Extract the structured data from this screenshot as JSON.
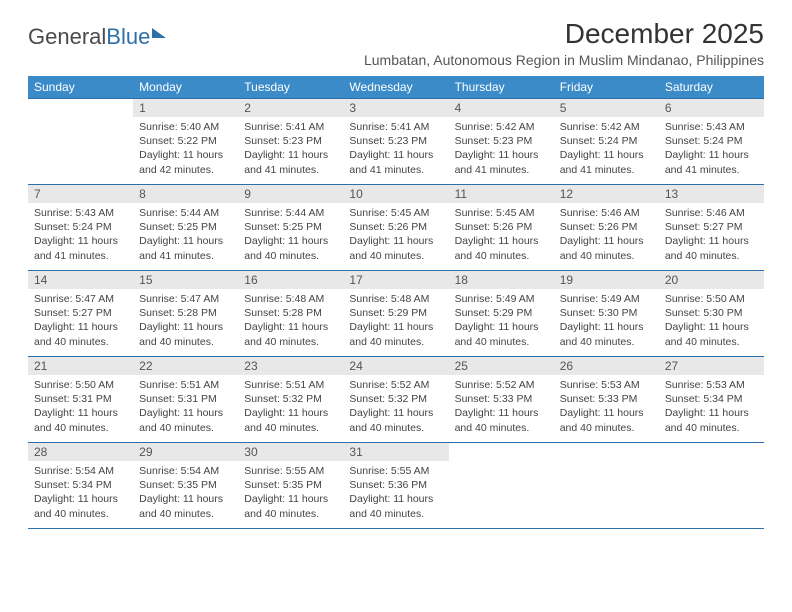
{
  "brand": {
    "part1": "General",
    "part2": "Blue"
  },
  "title": "December 2025",
  "location": "Lumbatan, Autonomous Region in Muslim Mindanao, Philippines",
  "colors": {
    "header_bg": "#3b8bc8",
    "header_text": "#ffffff",
    "rule": "#2f6fa7",
    "daynum_bg": "#e8e8e8",
    "body_text": "#444444",
    "page_bg": "#ffffff"
  },
  "typography": {
    "title_fontsize": 28,
    "location_fontsize": 14,
    "header_fontsize": 12,
    "daynum_fontsize": 12,
    "body_fontsize": 10.5
  },
  "layout": {
    "columns": 7,
    "rows": 5,
    "first_day_column": 1
  },
  "weekdays": [
    "Sunday",
    "Monday",
    "Tuesday",
    "Wednesday",
    "Thursday",
    "Friday",
    "Saturday"
  ],
  "labels": {
    "sunrise": "Sunrise:",
    "sunset": "Sunset:",
    "daylight": "Daylight:"
  },
  "days": [
    {
      "n": 1,
      "sunrise": "5:40 AM",
      "sunset": "5:22 PM",
      "daylight": "11 hours and 42 minutes."
    },
    {
      "n": 2,
      "sunrise": "5:41 AM",
      "sunset": "5:23 PM",
      "daylight": "11 hours and 41 minutes."
    },
    {
      "n": 3,
      "sunrise": "5:41 AM",
      "sunset": "5:23 PM",
      "daylight": "11 hours and 41 minutes."
    },
    {
      "n": 4,
      "sunrise": "5:42 AM",
      "sunset": "5:23 PM",
      "daylight": "11 hours and 41 minutes."
    },
    {
      "n": 5,
      "sunrise": "5:42 AM",
      "sunset": "5:24 PM",
      "daylight": "11 hours and 41 minutes."
    },
    {
      "n": 6,
      "sunrise": "5:43 AM",
      "sunset": "5:24 PM",
      "daylight": "11 hours and 41 minutes."
    },
    {
      "n": 7,
      "sunrise": "5:43 AM",
      "sunset": "5:24 PM",
      "daylight": "11 hours and 41 minutes."
    },
    {
      "n": 8,
      "sunrise": "5:44 AM",
      "sunset": "5:25 PM",
      "daylight": "11 hours and 41 minutes."
    },
    {
      "n": 9,
      "sunrise": "5:44 AM",
      "sunset": "5:25 PM",
      "daylight": "11 hours and 40 minutes."
    },
    {
      "n": 10,
      "sunrise": "5:45 AM",
      "sunset": "5:26 PM",
      "daylight": "11 hours and 40 minutes."
    },
    {
      "n": 11,
      "sunrise": "5:45 AM",
      "sunset": "5:26 PM",
      "daylight": "11 hours and 40 minutes."
    },
    {
      "n": 12,
      "sunrise": "5:46 AM",
      "sunset": "5:26 PM",
      "daylight": "11 hours and 40 minutes."
    },
    {
      "n": 13,
      "sunrise": "5:46 AM",
      "sunset": "5:27 PM",
      "daylight": "11 hours and 40 minutes."
    },
    {
      "n": 14,
      "sunrise": "5:47 AM",
      "sunset": "5:27 PM",
      "daylight": "11 hours and 40 minutes."
    },
    {
      "n": 15,
      "sunrise": "5:47 AM",
      "sunset": "5:28 PM",
      "daylight": "11 hours and 40 minutes."
    },
    {
      "n": 16,
      "sunrise": "5:48 AM",
      "sunset": "5:28 PM",
      "daylight": "11 hours and 40 minutes."
    },
    {
      "n": 17,
      "sunrise": "5:48 AM",
      "sunset": "5:29 PM",
      "daylight": "11 hours and 40 minutes."
    },
    {
      "n": 18,
      "sunrise": "5:49 AM",
      "sunset": "5:29 PM",
      "daylight": "11 hours and 40 minutes."
    },
    {
      "n": 19,
      "sunrise": "5:49 AM",
      "sunset": "5:30 PM",
      "daylight": "11 hours and 40 minutes."
    },
    {
      "n": 20,
      "sunrise": "5:50 AM",
      "sunset": "5:30 PM",
      "daylight": "11 hours and 40 minutes."
    },
    {
      "n": 21,
      "sunrise": "5:50 AM",
      "sunset": "5:31 PM",
      "daylight": "11 hours and 40 minutes."
    },
    {
      "n": 22,
      "sunrise": "5:51 AM",
      "sunset": "5:31 PM",
      "daylight": "11 hours and 40 minutes."
    },
    {
      "n": 23,
      "sunrise": "5:51 AM",
      "sunset": "5:32 PM",
      "daylight": "11 hours and 40 minutes."
    },
    {
      "n": 24,
      "sunrise": "5:52 AM",
      "sunset": "5:32 PM",
      "daylight": "11 hours and 40 minutes."
    },
    {
      "n": 25,
      "sunrise": "5:52 AM",
      "sunset": "5:33 PM",
      "daylight": "11 hours and 40 minutes."
    },
    {
      "n": 26,
      "sunrise": "5:53 AM",
      "sunset": "5:33 PM",
      "daylight": "11 hours and 40 minutes."
    },
    {
      "n": 27,
      "sunrise": "5:53 AM",
      "sunset": "5:34 PM",
      "daylight": "11 hours and 40 minutes."
    },
    {
      "n": 28,
      "sunrise": "5:54 AM",
      "sunset": "5:34 PM",
      "daylight": "11 hours and 40 minutes."
    },
    {
      "n": 29,
      "sunrise": "5:54 AM",
      "sunset": "5:35 PM",
      "daylight": "11 hours and 40 minutes."
    },
    {
      "n": 30,
      "sunrise": "5:55 AM",
      "sunset": "5:35 PM",
      "daylight": "11 hours and 40 minutes."
    },
    {
      "n": 31,
      "sunrise": "5:55 AM",
      "sunset": "5:36 PM",
      "daylight": "11 hours and 40 minutes."
    }
  ]
}
